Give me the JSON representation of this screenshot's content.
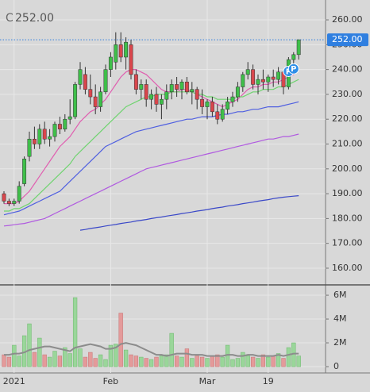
{
  "chart_data": {
    "type": "candlestick",
    "header_label": "C",
    "last_price": {
      "value": 252,
      "label": "252.00"
    },
    "up_color": "#3fbf4a",
    "down_color": "#d9464c",
    "wick_color": "#333333",
    "last_price_color": "#2f7fe0",
    "ylim": [
      153.6,
      268
    ],
    "yticks": [
      {
        "value": 160,
        "label": "160.00"
      },
      {
        "value": 170,
        "label": "170.00"
      },
      {
        "value": 180,
        "label": "180.00"
      },
      {
        "value": 190,
        "label": "190.00"
      },
      {
        "value": 200,
        "label": "200.00"
      },
      {
        "value": 210,
        "label": "210.00"
      },
      {
        "value": 220,
        "label": "220.00"
      },
      {
        "value": 230,
        "label": "230.00"
      },
      {
        "value": 240,
        "label": "240.00"
      },
      {
        "value": 250,
        "label": "250.00"
      },
      {
        "value": 260,
        "label": "260.00"
      }
    ],
    "categories": [
      null,
      null,
      "2021",
      null,
      null,
      null,
      null,
      null,
      null,
      null,
      null,
      null,
      null,
      null,
      null,
      null,
      null,
      null,
      null,
      null,
      null,
      "Feb",
      null,
      null,
      null,
      null,
      null,
      null,
      null,
      null,
      null,
      null,
      null,
      null,
      null,
      null,
      null,
      null,
      null,
      null,
      "Mar",
      null,
      null,
      null,
      null,
      null,
      null,
      null,
      null,
      null,
      null,
      null,
      "19",
      null,
      null,
      null,
      null,
      null,
      null
    ],
    "open": [
      190,
      187,
      186,
      187,
      194,
      205,
      212,
      210,
      216,
      212,
      213,
      218,
      216,
      220,
      221,
      234,
      238,
      232,
      229,
      225,
      231,
      240,
      243,
      250,
      245,
      250,
      238,
      232,
      234,
      228,
      230,
      226,
      228,
      231,
      234,
      232,
      235,
      231,
      232,
      228,
      225,
      227,
      223,
      220,
      224,
      227,
      229,
      233,
      238,
      240,
      234,
      236,
      235,
      237,
      236,
      239,
      233,
      244,
      246
    ],
    "high": [
      191,
      188,
      188,
      195,
      205,
      215,
      217,
      218,
      219,
      216,
      219,
      221,
      222,
      228,
      235,
      243,
      241,
      238,
      234,
      233,
      242,
      247,
      255,
      255,
      253,
      252,
      240,
      236,
      236,
      232,
      233,
      230,
      234,
      236,
      237,
      236,
      237,
      235,
      233,
      232,
      228,
      229,
      226,
      226,
      229,
      231,
      235,
      239,
      243,
      242,
      238,
      240,
      238,
      240,
      241,
      240,
      245,
      247,
      252
    ],
    "low": [
      186,
      185,
      185,
      186,
      193,
      203,
      208,
      208,
      210,
      209,
      211,
      214,
      215,
      218,
      220,
      232,
      230,
      226,
      222,
      223,
      230,
      237,
      240,
      243,
      240,
      236,
      230,
      228,
      225,
      224,
      223,
      220,
      224,
      228,
      229,
      228,
      230,
      226,
      224,
      222,
      220,
      221,
      218,
      219,
      222,
      225,
      227,
      231,
      236,
      232,
      230,
      232,
      231,
      233,
      234,
      230,
      232,
      240,
      244
    ],
    "close": [
      187,
      186,
      187,
      193,
      204,
      212,
      210,
      216,
      212,
      213,
      218,
      216,
      220,
      221,
      234,
      240,
      232,
      229,
      225,
      231,
      240,
      245,
      250,
      245,
      251,
      238,
      232,
      234,
      228,
      230,
      226,
      228,
      231,
      234,
      232,
      235,
      231,
      232,
      228,
      225,
      227,
      223,
      220,
      224,
      227,
      229,
      233,
      238,
      240,
      234,
      236,
      235,
      237,
      236,
      239,
      233,
      244,
      246,
      252
    ],
    "ma_lines": [
      {
        "color": "#e05fb0",
        "values": [
          186,
          186,
          186,
          187,
          189,
          191,
          194,
          197,
          200,
          203,
          206,
          209,
          211,
          213,
          216,
          219,
          221,
          223,
          224,
          226,
          228,
          231,
          234,
          237,
          239,
          240,
          240,
          239,
          238,
          236,
          234,
          232,
          231,
          231,
          231,
          232,
          232,
          231,
          230,
          229,
          228,
          227,
          226,
          225,
          226,
          227,
          228,
          230,
          232,
          233,
          233,
          234,
          234,
          235,
          235,
          236,
          237,
          238,
          240
        ]
      },
      {
        "color": "#6fd36f",
        "values": [
          183,
          183,
          184,
          184,
          185,
          186,
          188,
          190,
          192,
          194,
          196,
          198,
          200,
          202,
          205,
          207,
          209,
          211,
          213,
          215,
          217,
          219,
          221,
          223,
          225,
          226,
          227,
          228,
          229,
          229,
          230,
          230,
          230,
          231,
          231,
          231,
          231,
          231,
          230,
          230,
          229,
          229,
          228,
          228,
          228,
          228,
          229,
          229,
          230,
          231,
          231,
          232,
          232,
          232,
          233,
          233,
          234,
          235,
          236
        ]
      },
      {
        "color": "#4f5fe0",
        "values": [
          181.5,
          182,
          182.5,
          183,
          184,
          185,
          186,
          187,
          188,
          189,
          190,
          191,
          193,
          195,
          197,
          199,
          201,
          203,
          205,
          207,
          209,
          210,
          211,
          212,
          213,
          214,
          215,
          215.5,
          216,
          216.5,
          217,
          217.5,
          218,
          218.5,
          219,
          219.5,
          220,
          220,
          220.5,
          221,
          221,
          221,
          221.5,
          222,
          222,
          222.5,
          223,
          223,
          223.5,
          224,
          224,
          224.5,
          225,
          225,
          225,
          225.5,
          226,
          226.5,
          227
        ]
      },
      {
        "color": "#b05ae0",
        "values": [
          177,
          177.2,
          177.5,
          177.8,
          178,
          178.5,
          179,
          179.5,
          180,
          181,
          182,
          183,
          184,
          185,
          186,
          187,
          188,
          189,
          190,
          191,
          192,
          193,
          194,
          195,
          196,
          197,
          198,
          199,
          200,
          200.5,
          201,
          201.5,
          202,
          202.5,
          203,
          203.5,
          204,
          204.5,
          205,
          205.5,
          206,
          206.5,
          207,
          207.5,
          208,
          208.5,
          209,
          209.5,
          210,
          210.5,
          211,
          211.5,
          212,
          212,
          212.5,
          213,
          213,
          213.5,
          214
        ]
      },
      {
        "color": "#3a48c8",
        "values": [
          null,
          null,
          null,
          null,
          null,
          null,
          null,
          null,
          null,
          null,
          null,
          null,
          null,
          null,
          null,
          175.3,
          175.6,
          176,
          176.3,
          176.6,
          177,
          177.3,
          177.6,
          178,
          178.3,
          178.6,
          179,
          179.3,
          179.6,
          180,
          180.3,
          180.6,
          181,
          181.3,
          181.6,
          182,
          182.3,
          182.6,
          183,
          183.3,
          183.6,
          184,
          184.3,
          184.6,
          185,
          185.3,
          185.6,
          186,
          186.3,
          186.6,
          187,
          187.3,
          187.6,
          188,
          188.3,
          188.6,
          188.8,
          189,
          189.2
        ]
      }
    ],
    "markers": [
      {
        "index": 56,
        "label": "P"
      },
      {
        "index": 57,
        "label": "P"
      }
    ],
    "marker_color": "#2f8fe8",
    "volume": {
      "ylim": [
        -0.53,
        6.67
      ],
      "yticks": [
        0,
        {
          "value": 2,
          "label": "2M"
        },
        {
          "value": 4,
          "label": "4M"
        },
        {
          "value": 6,
          "label": "6M"
        }
      ],
      "up_color": "#9ad69a",
      "down_color": "#e49a9a",
      "ma_color": "#8c8c8c",
      "values": [
        1.0,
        0.8,
        1.8,
        0.9,
        2.6,
        3.6,
        1.2,
        2.4,
        1.0,
        0.8,
        1.3,
        0.9,
        1.6,
        1.1,
        5.8,
        1.5,
        0.8,
        1.2,
        0.7,
        1.0,
        0.6,
        1.8,
        1.9,
        4.5,
        1.4,
        1.0,
        0.9,
        0.8,
        0.7,
        0.6,
        0.8,
        0.9,
        1.0,
        2.8,
        0.9,
        0.8,
        1.5,
        0.7,
        0.9,
        0.8,
        0.7,
        0.9,
        1.0,
        0.8,
        1.8,
        0.6,
        0.7,
        1.2,
        0.9,
        0.8,
        0.7,
        1.0,
        0.8,
        0.9,
        1.1,
        0.7,
        1.6,
        2.0,
        0.9
      ],
      "ma": [
        1.0,
        1.0,
        1.1,
        1.1,
        1.2,
        1.4,
        1.5,
        1.6,
        1.7,
        1.7,
        1.6,
        1.5,
        1.4,
        1.3,
        1.6,
        1.7,
        1.8,
        1.9,
        1.8,
        1.7,
        1.5,
        1.5,
        1.6,
        1.9,
        2.0,
        1.9,
        1.8,
        1.6,
        1.4,
        1.2,
        1.0,
        1.0,
        0.9,
        1.0,
        1.1,
        1.1,
        1.1,
        1.0,
        1.0,
        1.0,
        0.9,
        0.9,
        0.9,
        0.9,
        1.0,
        1.0,
        0.9,
        0.9,
        1.0,
        1.0,
        0.9,
        0.9,
        0.9,
        0.9,
        1.0,
        0.9,
        1.0,
        1.1,
        1.1
      ]
    }
  }
}
